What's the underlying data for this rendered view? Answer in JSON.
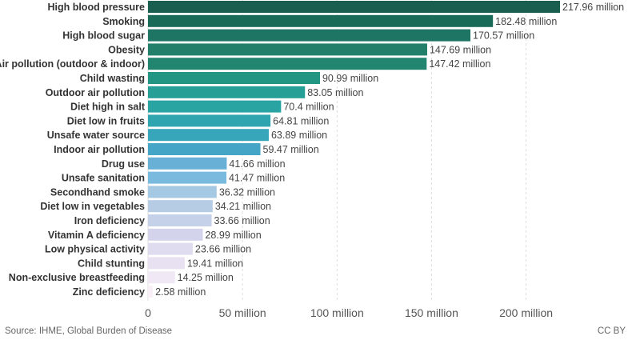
{
  "chart_data": {
    "type": "bar",
    "orientation": "horizontal",
    "title": "",
    "xlabel": "",
    "ylabel": "",
    "xlim": [
      0,
      217.96
    ],
    "value_suffix": " million",
    "categories": [
      "High blood pressure",
      "Smoking",
      "High blood sugar",
      "Obesity",
      "Air pollution (outdoor & indoor)",
      "Child wasting",
      "Outdoor air pollution",
      "Diet high in salt",
      "Diet low in fruits",
      "Unsafe water source",
      "Indoor air pollution",
      "Drug use",
      "Unsafe sanitation",
      "Secondhand smoke",
      "Diet low in vegetables",
      "Iron deficiency",
      "Vitamin A deficiency",
      "Low physical activity",
      "Child stunting",
      "Non-exclusive breastfeeding",
      "Zinc deficiency"
    ],
    "values": [
      217.96,
      182.48,
      170.57,
      147.69,
      147.42,
      90.99,
      83.05,
      70.4,
      64.81,
      63.89,
      59.47,
      41.66,
      41.47,
      36.32,
      34.21,
      33.66,
      28.99,
      23.66,
      19.41,
      14.25,
      2.58
    ],
    "value_labels": [
      "217.96 million",
      "182.48 million",
      "170.57 million",
      "147.69 million",
      "147.42 million",
      "90.99 million",
      "83.05 million",
      "70.4 million",
      "64.81 million",
      "63.89 million",
      "59.47 million",
      "41.66 million",
      "41.47 million",
      "36.32 million",
      "34.21 million",
      "33.66 million",
      "28.99 million",
      "23.66 million",
      "19.41 million",
      "14.25 million",
      "2.58 million"
    ],
    "colors": [
      "#1a5e4f",
      "#1a6a58",
      "#1e7563",
      "#217f6a",
      "#228570",
      "#229583",
      "#26a096",
      "#2aa3a3",
      "#2fa5b0",
      "#37a6bb",
      "#44a5c6",
      "#68b0d6",
      "#79bade",
      "#a5c8e3",
      "#b6cce4",
      "#c4d1e8",
      "#d3d4ec",
      "#e0dcef",
      "#e8e1f1",
      "#f0e8f4",
      "#f8f0f6"
    ],
    "x_ticks": [
      0,
      50,
      100,
      150,
      200
    ],
    "x_tick_labels": [
      "0",
      "50 million",
      "100 million",
      "150 million",
      "200 million"
    ],
    "grid": true
  },
  "footer": {
    "source": "Source: IHME, Global Burden of Disease",
    "license": "CC BY"
  }
}
